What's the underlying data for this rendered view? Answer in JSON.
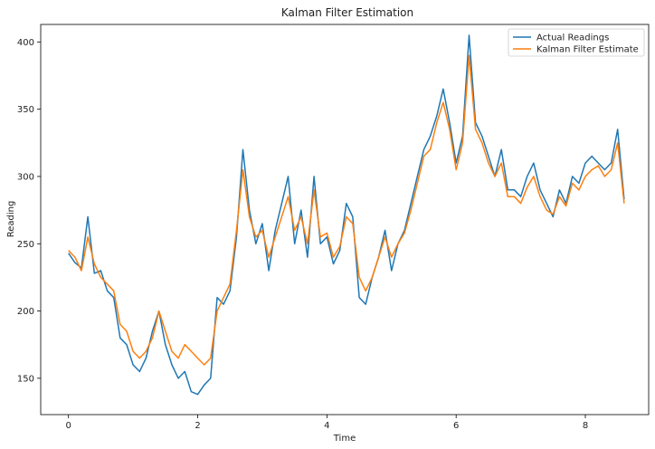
{
  "chart_data": {
    "type": "line",
    "title": "Kalman Filter Estimation",
    "xlabel": "Time",
    "ylabel": "Reading",
    "xlim": [
      -0.43,
      8.98
    ],
    "ylim": [
      123,
      413
    ],
    "xticks": [
      0,
      2,
      4,
      6,
      8
    ],
    "yticks": [
      150,
      200,
      250,
      300,
      350,
      400
    ],
    "grid": false,
    "legend_position": "top-right",
    "series": [
      {
        "name": "Actual Readings",
        "color": "#1f77b4",
        "x": [
          0,
          0.1,
          0.2,
          0.3,
          0.4,
          0.5,
          0.6,
          0.7,
          0.8,
          0.9,
          1.0,
          1.1,
          1.2,
          1.3,
          1.4,
          1.5,
          1.6,
          1.7,
          1.8,
          1.9,
          2.0,
          2.1,
          2.2,
          2.3,
          2.4,
          2.5,
          2.6,
          2.7,
          2.8,
          2.9,
          3.0,
          3.1,
          3.2,
          3.3,
          3.4,
          3.5,
          3.6,
          3.7,
          3.8,
          3.9,
          4.0,
          4.1,
          4.2,
          4.3,
          4.4,
          4.5,
          4.6,
          4.7,
          4.8,
          4.9,
          5.0,
          5.1,
          5.2,
          5.3,
          5.4,
          5.5,
          5.6,
          5.7,
          5.8,
          5.9,
          6.0,
          6.1,
          6.2,
          6.3,
          6.4,
          6.5,
          6.6,
          6.7,
          6.8,
          6.9,
          7.0,
          7.1,
          7.2,
          7.3,
          7.4,
          7.5,
          7.6,
          7.7,
          7.8,
          7.9,
          8.0,
          8.1,
          8.2,
          8.3,
          8.4,
          8.5,
          8.6
        ],
        "values": [
          243,
          236,
          232,
          270,
          228,
          230,
          215,
          210,
          180,
          175,
          160,
          155,
          165,
          185,
          200,
          175,
          160,
          150,
          155,
          140,
          138,
          145,
          150,
          210,
          205,
          215,
          255,
          320,
          275,
          250,
          265,
          230,
          260,
          280,
          300,
          250,
          275,
          240,
          300,
          250,
          255,
          235,
          245,
          280,
          270,
          210,
          205,
          225,
          240,
          260,
          230,
          250,
          260,
          280,
          300,
          320,
          330,
          345,
          365,
          340,
          310,
          330,
          405,
          340,
          330,
          315,
          300,
          320,
          290,
          290,
          285,
          300,
          310,
          290,
          280,
          270,
          290,
          280,
          300,
          295,
          310,
          315,
          310,
          305,
          310,
          335,
          283
        ]
      },
      {
        "name": "Kalman Filter Estimate",
        "color": "#ff7f0e",
        "x": [
          0,
          0.1,
          0.2,
          0.3,
          0.4,
          0.5,
          0.6,
          0.7,
          0.8,
          0.9,
          1.0,
          1.1,
          1.2,
          1.3,
          1.4,
          1.5,
          1.6,
          1.7,
          1.8,
          1.9,
          2.0,
          2.1,
          2.2,
          2.3,
          2.4,
          2.5,
          2.6,
          2.7,
          2.8,
          2.9,
          3.0,
          3.1,
          3.2,
          3.3,
          3.4,
          3.5,
          3.6,
          3.7,
          3.8,
          3.9,
          4.0,
          4.1,
          4.2,
          4.3,
          4.4,
          4.5,
          4.6,
          4.7,
          4.8,
          4.9,
          5.0,
          5.1,
          5.2,
          5.3,
          5.4,
          5.5,
          5.6,
          5.7,
          5.8,
          5.9,
          6.0,
          6.1,
          6.2,
          6.3,
          6.4,
          6.5,
          6.6,
          6.7,
          6.8,
          6.9,
          7.0,
          7.1,
          7.2,
          7.3,
          7.4,
          7.5,
          7.6,
          7.7,
          7.8,
          7.9,
          8.0,
          8.1,
          8.2,
          8.3,
          8.4,
          8.5,
          8.6
        ],
        "values": [
          245,
          240,
          230,
          255,
          235,
          225,
          220,
          215,
          190,
          185,
          170,
          165,
          170,
          180,
          200,
          185,
          170,
          165,
          175,
          170,
          165,
          160,
          165,
          200,
          210,
          220,
          260,
          305,
          270,
          255,
          260,
          240,
          255,
          270,
          285,
          260,
          270,
          250,
          290,
          255,
          258,
          240,
          248,
          270,
          265,
          225,
          215,
          225,
          240,
          255,
          240,
          250,
          258,
          275,
          295,
          315,
          320,
          340,
          355,
          335,
          305,
          325,
          390,
          335,
          325,
          310,
          300,
          310,
          285,
          285,
          280,
          292,
          300,
          285,
          275,
          272,
          285,
          278,
          295,
          290,
          300,
          305,
          308,
          300,
          305,
          325,
          280
        ]
      }
    ]
  }
}
